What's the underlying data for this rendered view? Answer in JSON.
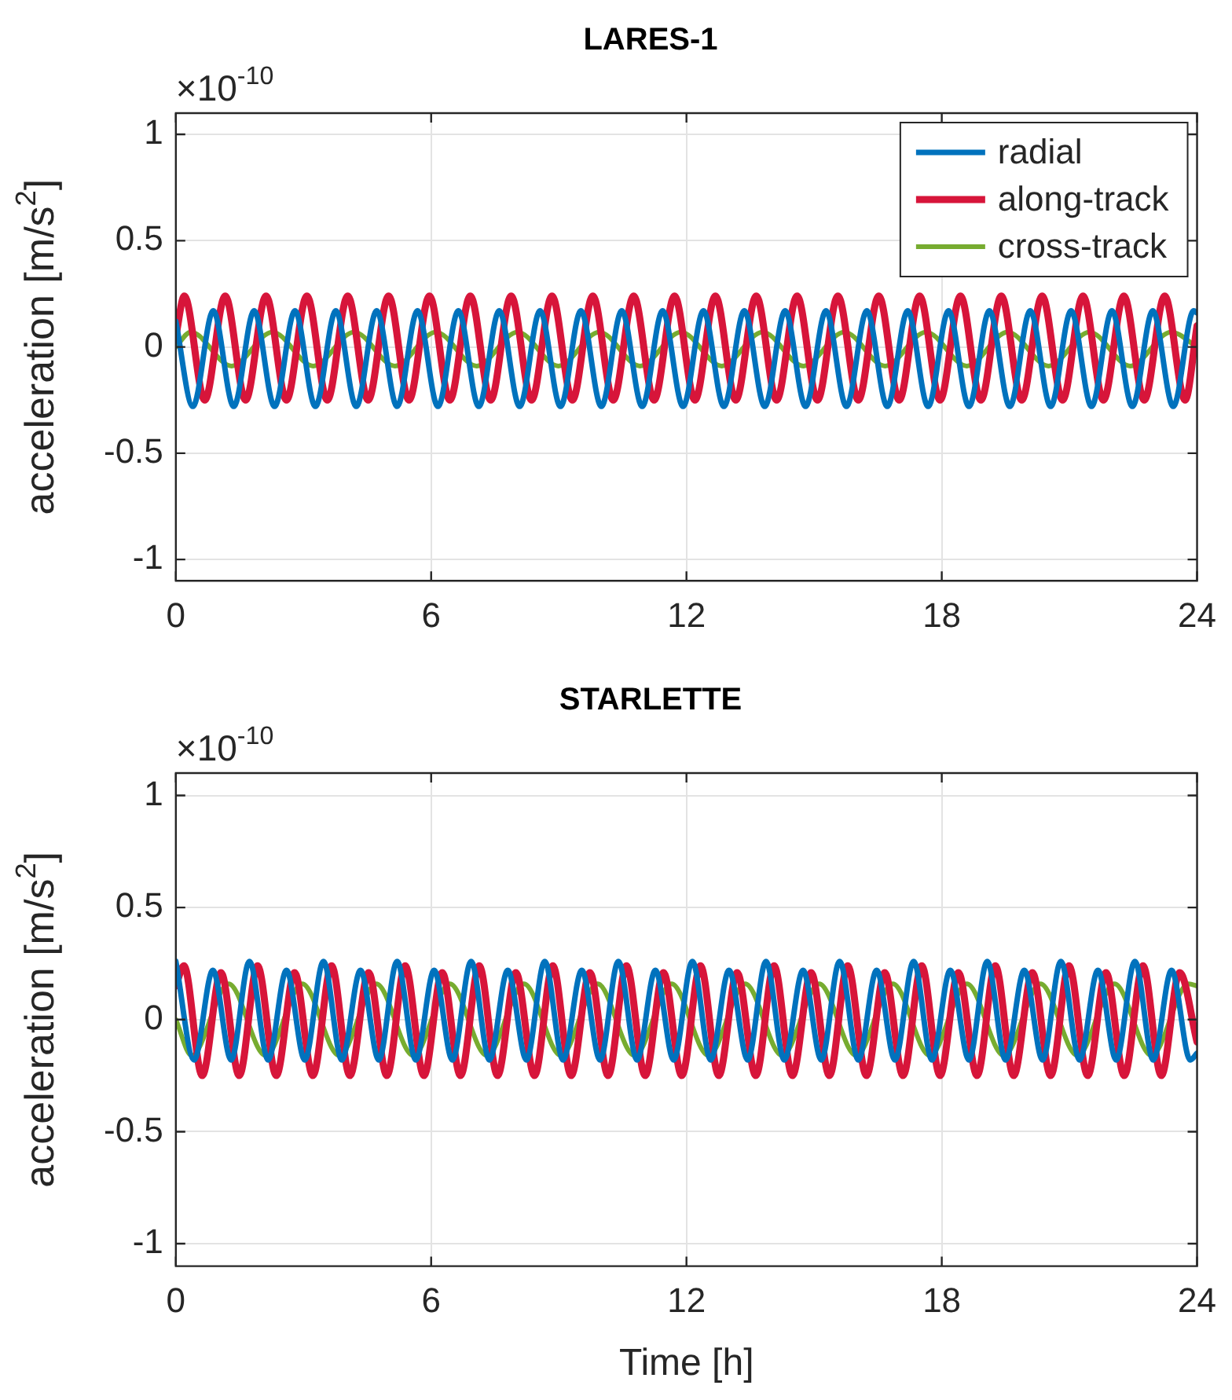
{
  "chart_data": [
    {
      "type": "line",
      "title": "LARES-1",
      "ylabel": "acceleration [m/s$^{2}$]",
      "annotations": [
        "×10$^{-10}$"
      ],
      "xlim": [
        0,
        24
      ],
      "xticks": [
        0,
        6,
        12,
        18,
        24
      ],
      "ylim": [
        -1.1,
        1.1
      ],
      "yticks": [
        -1,
        -0.5,
        0,
        0.5,
        1
      ],
      "grid": true,
      "legend": "top right",
      "line_style": "solid",
      "series": [
        {
          "name": "radial",
          "color": "#0072bd",
          "x": [
            0,
            0.4,
            0.88,
            1.36,
            1.84,
            2.32,
            2.8,
            3.28,
            3.76,
            4.24,
            4.72,
            5.2,
            5.68,
            6.16,
            6.64,
            7.12,
            7.6,
            8.08,
            8.56,
            9.04,
            9.52,
            10.0,
            10.48,
            10.96,
            11.44,
            11.92,
            12.4,
            12.88,
            13.36,
            13.84,
            14.32,
            14.8,
            15.28,
            15.76,
            16.24,
            16.72,
            17.2,
            17.68,
            18.16,
            18.64,
            19.12,
            19.6,
            20.08,
            20.56,
            21.04,
            21.52,
            22.0,
            22.48,
            22.96,
            23.44,
            23.92,
            24
          ],
          "values": [
            0.12,
            -0.28,
            0.17,
            -0.28,
            0.17,
            -0.28,
            0.17,
            -0.28,
            0.17,
            -0.28,
            0.17,
            -0.28,
            0.17,
            -0.28,
            0.17,
            -0.28,
            0.17,
            -0.28,
            0.17,
            -0.28,
            0.17,
            -0.28,
            0.17,
            -0.28,
            0.17,
            -0.28,
            0.17,
            -0.28,
            0.17,
            -0.28,
            0.17,
            -0.28,
            0.17,
            -0.28,
            0.17,
            -0.28,
            0.17,
            -0.28,
            0.17,
            -0.28,
            0.17,
            -0.28,
            0.17,
            -0.28,
            0.17,
            -0.28,
            0.17,
            -0.28,
            0.17,
            -0.28,
            0.17,
            0.16
          ]
        },
        {
          "name": "along-track",
          "color": "#d7153a",
          "x": [
            0,
            0.2,
            0.68,
            1.16,
            1.64,
            2.12,
            2.6,
            3.08,
            3.56,
            4.04,
            4.52,
            5.0,
            5.48,
            5.96,
            6.44,
            6.92,
            7.4,
            7.88,
            8.36,
            8.84,
            9.32,
            9.8,
            10.28,
            10.76,
            11.24,
            11.72,
            12.2,
            12.68,
            13.16,
            13.64,
            14.12,
            14.6,
            15.08,
            15.56,
            16.04,
            16.52,
            17.0,
            17.48,
            17.96,
            18.44,
            18.92,
            19.4,
            19.88,
            20.36,
            20.84,
            21.32,
            21.8,
            22.28,
            22.76,
            23.24,
            23.72,
            24
          ],
          "values": [
            0.05,
            0.24,
            -0.25,
            0.24,
            -0.25,
            0.24,
            -0.25,
            0.24,
            -0.25,
            0.24,
            -0.25,
            0.24,
            -0.25,
            0.24,
            -0.25,
            0.24,
            -0.25,
            0.24,
            -0.25,
            0.24,
            -0.25,
            0.24,
            -0.25,
            0.24,
            -0.25,
            0.24,
            -0.25,
            0.24,
            -0.25,
            0.24,
            -0.25,
            0.24,
            -0.25,
            0.24,
            -0.25,
            0.24,
            -0.25,
            0.24,
            -0.25,
            0.24,
            -0.25,
            0.24,
            -0.25,
            0.24,
            -0.25,
            0.24,
            -0.25,
            0.24,
            -0.25,
            0.24,
            -0.25,
            0.1
          ]
        },
        {
          "name": "cross-track",
          "color": "#77ac30",
          "x": [
            0,
            0.35,
            1.31,
            2.27,
            3.23,
            4.19,
            5.15,
            6.11,
            7.07,
            8.03,
            8.99,
            9.95,
            10.91,
            11.87,
            12.83,
            13.79,
            14.75,
            15.71,
            16.67,
            17.63,
            18.59,
            19.55,
            20.51,
            21.47,
            22.43,
            23.39,
            24
          ],
          "values": [
            0.0,
            0.07,
            -0.09,
            0.07,
            -0.09,
            0.07,
            -0.09,
            0.07,
            -0.09,
            0.07,
            -0.09,
            0.07,
            -0.09,
            0.07,
            -0.09,
            0.07,
            -0.09,
            0.07,
            -0.09,
            0.07,
            -0.09,
            0.07,
            -0.09,
            0.07,
            -0.09,
            0.07,
            0.0
          ]
        }
      ]
    },
    {
      "type": "line",
      "title": "STARLETTE",
      "xlabel": "Time [h]",
      "ylabel": "acceleration [m/s$^{2}$]",
      "annotations": [
        "×10$^{-10}$"
      ],
      "xlim": [
        0,
        24
      ],
      "xticks": [
        0,
        6,
        12,
        18,
        24
      ],
      "ylim": [
        -1.1,
        1.1
      ],
      "yticks": [
        -1,
        -0.5,
        0,
        0.5,
        1
      ],
      "grid": true,
      "line_style": "solid",
      "series": [
        {
          "color": "#0072bd",
          "x": [
            0,
            0.43,
            0.87,
            1.3,
            1.73,
            2.17,
            2.6,
            3.03,
            3.47,
            3.9,
            4.34,
            4.77,
            5.2,
            5.64,
            6.07,
            6.5,
            6.94,
            7.37,
            7.8,
            8.24,
            8.67,
            9.1,
            9.54,
            9.97,
            10.4,
            10.84,
            11.27,
            11.7,
            12.14,
            12.57,
            13.0,
            13.44,
            13.87,
            14.3,
            14.74,
            15.17,
            15.6,
            16.04,
            16.47,
            16.9,
            17.34,
            17.77,
            18.2,
            18.64,
            19.07,
            19.5,
            19.94,
            20.37,
            20.8,
            21.24,
            21.67,
            22.1,
            22.54,
            22.97,
            23.4,
            23.84,
            24
          ],
          "values": [
            0.26,
            -0.18,
            0.22,
            -0.18,
            0.26,
            -0.18,
            0.22,
            -0.18,
            0.26,
            -0.18,
            0.22,
            -0.18,
            0.26,
            -0.18,
            0.22,
            -0.18,
            0.26,
            -0.18,
            0.22,
            -0.18,
            0.26,
            -0.18,
            0.22,
            -0.18,
            0.26,
            -0.18,
            0.22,
            -0.18,
            0.26,
            -0.18,
            0.22,
            -0.18,
            0.26,
            -0.18,
            0.22,
            -0.18,
            0.26,
            -0.18,
            0.22,
            -0.18,
            0.26,
            -0.18,
            0.22,
            -0.18,
            0.26,
            -0.18,
            0.22,
            -0.18,
            0.26,
            -0.18,
            0.22,
            -0.18,
            0.26,
            -0.18,
            0.22,
            -0.18,
            -0.15
          ]
        },
        {
          "color": "#d7153a",
          "x": [
            0,
            0.19,
            0.62,
            1.06,
            1.49,
            1.92,
            2.36,
            2.79,
            3.22,
            3.66,
            4.09,
            4.53,
            4.96,
            5.39,
            5.83,
            6.26,
            6.69,
            7.13,
            7.56,
            7.99,
            8.43,
            8.86,
            9.29,
            9.73,
            10.16,
            10.59,
            11.03,
            11.46,
            11.89,
            12.33,
            12.76,
            13.19,
            13.63,
            14.06,
            14.49,
            14.93,
            15.36,
            15.79,
            16.23,
            16.66,
            17.09,
            17.53,
            17.96,
            18.39,
            18.83,
            19.26,
            19.69,
            20.13,
            20.56,
            20.99,
            21.43,
            21.86,
            22.29,
            22.73,
            23.16,
            23.59,
            24
          ],
          "values": [
            0.15,
            0.24,
            -0.25,
            0.21,
            -0.25,
            0.24,
            -0.25,
            0.21,
            -0.25,
            0.24,
            -0.25,
            0.21,
            -0.25,
            0.24,
            -0.25,
            0.21,
            -0.25,
            0.24,
            -0.25,
            0.21,
            -0.25,
            0.24,
            -0.25,
            0.21,
            -0.25,
            0.24,
            -0.25,
            0.21,
            -0.25,
            0.24,
            -0.25,
            0.21,
            -0.25,
            0.24,
            -0.25,
            0.21,
            -0.25,
            0.24,
            -0.25,
            0.21,
            -0.25,
            0.24,
            -0.25,
            0.21,
            -0.25,
            0.24,
            -0.25,
            0.21,
            -0.25,
            0.24,
            -0.25,
            0.21,
            -0.25,
            0.24,
            -0.25,
            0.21,
            -0.1
          ]
        },
        {
          "color": "#77ac30",
          "x": [
            0,
            0.37,
            1.24,
            2.11,
            2.97,
            3.84,
            4.71,
            5.58,
            6.44,
            7.31,
            8.18,
            9.05,
            9.91,
            10.78,
            11.65,
            12.52,
            13.38,
            14.25,
            15.12,
            15.99,
            16.85,
            17.72,
            18.59,
            19.46,
            20.32,
            21.19,
            22.06,
            22.93,
            23.8,
            24
          ],
          "values": [
            0.0,
            -0.16,
            0.16,
            -0.16,
            0.16,
            -0.16,
            0.16,
            -0.16,
            0.16,
            -0.16,
            0.16,
            -0.16,
            0.16,
            -0.16,
            0.16,
            -0.16,
            0.16,
            -0.16,
            0.16,
            -0.16,
            0.16,
            -0.16,
            0.16,
            -0.16,
            0.16,
            -0.16,
            0.16,
            -0.16,
            0.16,
            0.15
          ]
        }
      ]
    }
  ]
}
